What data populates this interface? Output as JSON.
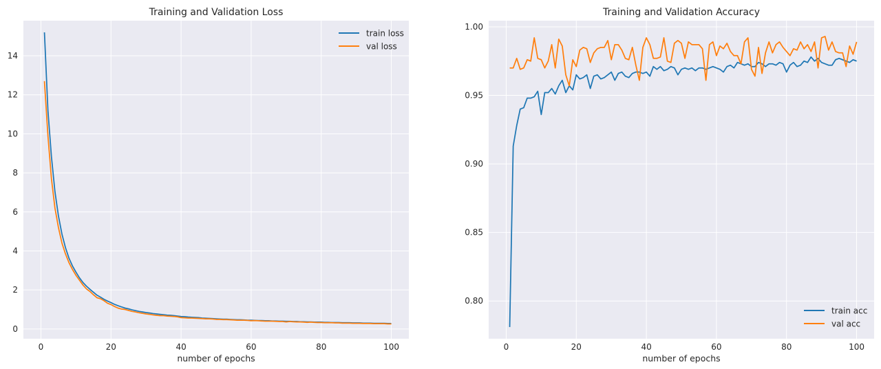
{
  "chart_data": [
    {
      "type": "line",
      "title": "Training and Validation Loss",
      "xlabel": "number of epochs",
      "ylabel": "",
      "xlim": [
        -5,
        105
      ],
      "ylim": [
        -0.5,
        15.8
      ],
      "xticks": [
        0,
        20,
        40,
        60,
        80,
        100
      ],
      "yticks": [
        0,
        2,
        4,
        6,
        8,
        10,
        12,
        14
      ],
      "xtick_labels": [
        "0",
        "20",
        "40",
        "60",
        "80",
        "100"
      ],
      "ytick_labels": [
        "0",
        "2",
        "4",
        "6",
        "8",
        "10",
        "12",
        "14"
      ],
      "grid": true,
      "legend_position": "upper right",
      "series": [
        {
          "name": "train loss",
          "color": "#1f77b4",
          "x": [
            1,
            2,
            3,
            4,
            5,
            6,
            7,
            8,
            9,
            10,
            11,
            12,
            13,
            14,
            15,
            16,
            17,
            18,
            19,
            20,
            21,
            22,
            23,
            24,
            25,
            26,
            27,
            28,
            29,
            30,
            31,
            32,
            33,
            34,
            35,
            36,
            37,
            38,
            39,
            40,
            41,
            42,
            43,
            44,
            45,
            46,
            47,
            48,
            49,
            50,
            51,
            52,
            53,
            54,
            55,
            56,
            57,
            58,
            59,
            60,
            61,
            62,
            63,
            64,
            65,
            66,
            67,
            68,
            69,
            70,
            71,
            72,
            73,
            74,
            75,
            76,
            77,
            78,
            79,
            80,
            81,
            82,
            83,
            84,
            85,
            86,
            87,
            88,
            89,
            90,
            91,
            92,
            93,
            94,
            95,
            96,
            97,
            98,
            99,
            100
          ],
          "values": [
            15.2,
            11.2,
            8.83,
            7.04,
            5.79,
            4.86,
            4.17,
            3.63,
            3.23,
            2.91,
            2.62,
            2.38,
            2.19,
            2.03,
            1.88,
            1.73,
            1.63,
            1.52,
            1.43,
            1.35,
            1.26,
            1.19,
            1.13,
            1.07,
            1.03,
            0.98,
            0.94,
            0.9,
            0.87,
            0.84,
            0.82,
            0.79,
            0.77,
            0.75,
            0.73,
            0.71,
            0.7,
            0.68,
            0.66,
            0.64,
            0.63,
            0.61,
            0.6,
            0.59,
            0.58,
            0.56,
            0.55,
            0.54,
            0.53,
            0.52,
            0.51,
            0.5,
            0.5,
            0.49,
            0.48,
            0.47,
            0.47,
            0.46,
            0.45,
            0.45,
            0.44,
            0.43,
            0.43,
            0.42,
            0.42,
            0.41,
            0.41,
            0.4,
            0.4,
            0.39,
            0.39,
            0.38,
            0.38,
            0.37,
            0.37,
            0.36,
            0.36,
            0.35,
            0.35,
            0.35,
            0.34,
            0.34,
            0.33,
            0.33,
            0.33,
            0.32,
            0.32,
            0.32,
            0.31,
            0.31,
            0.31,
            0.3,
            0.3,
            0.3,
            0.29,
            0.29,
            0.29,
            0.29,
            0.28,
            0.28
          ]
        },
        {
          "name": "val loss",
          "color": "#ff7f0e",
          "x": [
            1,
            2,
            3,
            4,
            5,
            6,
            7,
            8,
            9,
            10,
            11,
            12,
            13,
            14,
            15,
            16,
            17,
            18,
            19,
            20,
            21,
            22,
            23,
            24,
            25,
            26,
            27,
            28,
            29,
            30,
            31,
            32,
            33,
            34,
            35,
            36,
            37,
            38,
            39,
            40,
            41,
            42,
            43,
            44,
            45,
            46,
            47,
            48,
            49,
            50,
            51,
            52,
            53,
            54,
            55,
            56,
            57,
            58,
            59,
            60,
            61,
            62,
            63,
            64,
            65,
            66,
            67,
            68,
            69,
            70,
            71,
            72,
            73,
            74,
            75,
            76,
            77,
            78,
            79,
            80,
            81,
            82,
            83,
            84,
            85,
            86,
            87,
            88,
            89,
            90,
            91,
            92,
            93,
            94,
            95,
            96,
            97,
            98,
            99,
            100
          ],
          "values": [
            12.7,
            9.9,
            7.7,
            6.2,
            5.2,
            4.4,
            3.85,
            3.4,
            3.05,
            2.75,
            2.5,
            2.25,
            2.05,
            1.92,
            1.75,
            1.6,
            1.55,
            1.45,
            1.32,
            1.25,
            1.15,
            1.07,
            1.02,
            1.0,
            0.95,
            0.9,
            0.87,
            0.83,
            0.8,
            0.77,
            0.75,
            0.72,
            0.7,
            0.68,
            0.68,
            0.66,
            0.65,
            0.64,
            0.62,
            0.58,
            0.57,
            0.56,
            0.56,
            0.55,
            0.54,
            0.53,
            0.52,
            0.52,
            0.51,
            0.49,
            0.49,
            0.48,
            0.48,
            0.47,
            0.46,
            0.45,
            0.45,
            0.45,
            0.44,
            0.42,
            0.43,
            0.42,
            0.41,
            0.4,
            0.4,
            0.4,
            0.39,
            0.38,
            0.38,
            0.36,
            0.38,
            0.37,
            0.36,
            0.36,
            0.35,
            0.34,
            0.35,
            0.34,
            0.33,
            0.33,
            0.32,
            0.32,
            0.32,
            0.31,
            0.31,
            0.3,
            0.3,
            0.3,
            0.29,
            0.29,
            0.29,
            0.28,
            0.28,
            0.28,
            0.27,
            0.27,
            0.27,
            0.27,
            0.26,
            0.26
          ]
        }
      ]
    },
    {
      "type": "line",
      "title": "Training and Validation Accuracy",
      "xlabel": "number of epochs",
      "ylabel": "",
      "xlim": [
        -5,
        105
      ],
      "ylim": [
        0.7725,
        1.0045
      ],
      "xticks": [
        0,
        20,
        40,
        60,
        80,
        100
      ],
      "yticks": [
        0.8,
        0.85,
        0.9,
        0.95,
        1.0
      ],
      "xtick_labels": [
        "0",
        "20",
        "40",
        "60",
        "80",
        "100"
      ],
      "ytick_labels": [
        "0.80",
        "0.85",
        "0.90",
        "0.95",
        "1.00"
      ],
      "grid": true,
      "legend_position": "lower right",
      "series": [
        {
          "name": "train acc",
          "color": "#1f77b4",
          "x": [
            1,
            2,
            3,
            4,
            5,
            6,
            7,
            8,
            9,
            10,
            11,
            12,
            13,
            14,
            15,
            16,
            17,
            18,
            19,
            20,
            21,
            22,
            23,
            24,
            25,
            26,
            27,
            28,
            29,
            30,
            31,
            32,
            33,
            34,
            35,
            36,
            37,
            38,
            39,
            40,
            41,
            42,
            43,
            44,
            45,
            46,
            47,
            48,
            49,
            50,
            51,
            52,
            53,
            54,
            55,
            56,
            57,
            58,
            59,
            60,
            61,
            62,
            63,
            64,
            65,
            66,
            67,
            68,
            69,
            70,
            71,
            72,
            73,
            74,
            75,
            76,
            77,
            78,
            79,
            80,
            81,
            82,
            83,
            84,
            85,
            86,
            87,
            88,
            89,
            90,
            91,
            92,
            93,
            94,
            95,
            96,
            97,
            98,
            99,
            100
          ],
          "values": [
            0.781,
            0.913,
            0.928,
            0.94,
            0.941,
            0.948,
            0.948,
            0.949,
            0.953,
            0.936,
            0.952,
            0.952,
            0.955,
            0.951,
            0.957,
            0.961,
            0.952,
            0.957,
            0.954,
            0.965,
            0.962,
            0.963,
            0.965,
            0.955,
            0.964,
            0.965,
            0.962,
            0.963,
            0.965,
            0.967,
            0.961,
            0.966,
            0.967,
            0.964,
            0.963,
            0.966,
            0.967,
            0.967,
            0.966,
            0.967,
            0.964,
            0.971,
            0.969,
            0.971,
            0.968,
            0.969,
            0.971,
            0.97,
            0.965,
            0.969,
            0.97,
            0.969,
            0.97,
            0.968,
            0.97,
            0.97,
            0.969,
            0.97,
            0.971,
            0.97,
            0.969,
            0.967,
            0.971,
            0.972,
            0.97,
            0.974,
            0.973,
            0.972,
            0.973,
            0.971,
            0.971,
            0.974,
            0.973,
            0.971,
            0.973,
            0.973,
            0.972,
            0.974,
            0.973,
            0.967,
            0.972,
            0.974,
            0.971,
            0.972,
            0.975,
            0.974,
            0.978,
            0.975,
            0.977,
            0.974,
            0.973,
            0.972,
            0.972,
            0.976,
            0.977,
            0.976,
            0.975,
            0.974,
            0.976,
            0.975
          ]
        },
        {
          "name": "val acc",
          "color": "#ff7f0e",
          "x": [
            1,
            2,
            3,
            4,
            5,
            6,
            7,
            8,
            9,
            10,
            11,
            12,
            13,
            14,
            15,
            16,
            17,
            18,
            19,
            20,
            21,
            22,
            23,
            24,
            25,
            26,
            27,
            28,
            29,
            30,
            31,
            32,
            33,
            34,
            35,
            36,
            37,
            38,
            39,
            40,
            41,
            42,
            43,
            44,
            45,
            46,
            47,
            48,
            49,
            50,
            51,
            52,
            53,
            54,
            55,
            56,
            57,
            58,
            59,
            60,
            61,
            62,
            63,
            64,
            65,
            66,
            67,
            68,
            69,
            70,
            71,
            72,
            73,
            74,
            75,
            76,
            77,
            78,
            79,
            80,
            81,
            82,
            83,
            84,
            85,
            86,
            87,
            88,
            89,
            90,
            91,
            92,
            93,
            94,
            95,
            96,
            97,
            98,
            99,
            100
          ],
          "values": [
            0.97,
            0.97,
            0.977,
            0.969,
            0.97,
            0.976,
            0.975,
            0.992,
            0.977,
            0.976,
            0.97,
            0.975,
            0.987,
            0.97,
            0.991,
            0.986,
            0.965,
            0.957,
            0.976,
            0.971,
            0.983,
            0.985,
            0.984,
            0.974,
            0.981,
            0.984,
            0.985,
            0.985,
            0.99,
            0.976,
            0.987,
            0.987,
            0.983,
            0.977,
            0.976,
            0.985,
            0.972,
            0.961,
            0.985,
            0.992,
            0.987,
            0.977,
            0.977,
            0.978,
            0.992,
            0.975,
            0.974,
            0.988,
            0.99,
            0.988,
            0.977,
            0.989,
            0.987,
            0.987,
            0.987,
            0.984,
            0.961,
            0.987,
            0.989,
            0.979,
            0.986,
            0.984,
            0.988,
            0.982,
            0.979,
            0.979,
            0.973,
            0.989,
            0.992,
            0.969,
            0.964,
            0.985,
            0.966,
            0.981,
            0.989,
            0.981,
            0.987,
            0.989,
            0.985,
            0.982,
            0.979,
            0.984,
            0.983,
            0.989,
            0.984,
            0.987,
            0.982,
            0.989,
            0.97,
            0.992,
            0.993,
            0.983,
            0.989,
            0.982,
            0.981,
            0.981,
            0.971,
            0.986,
            0.98,
            0.989
          ]
        }
      ]
    }
  ]
}
